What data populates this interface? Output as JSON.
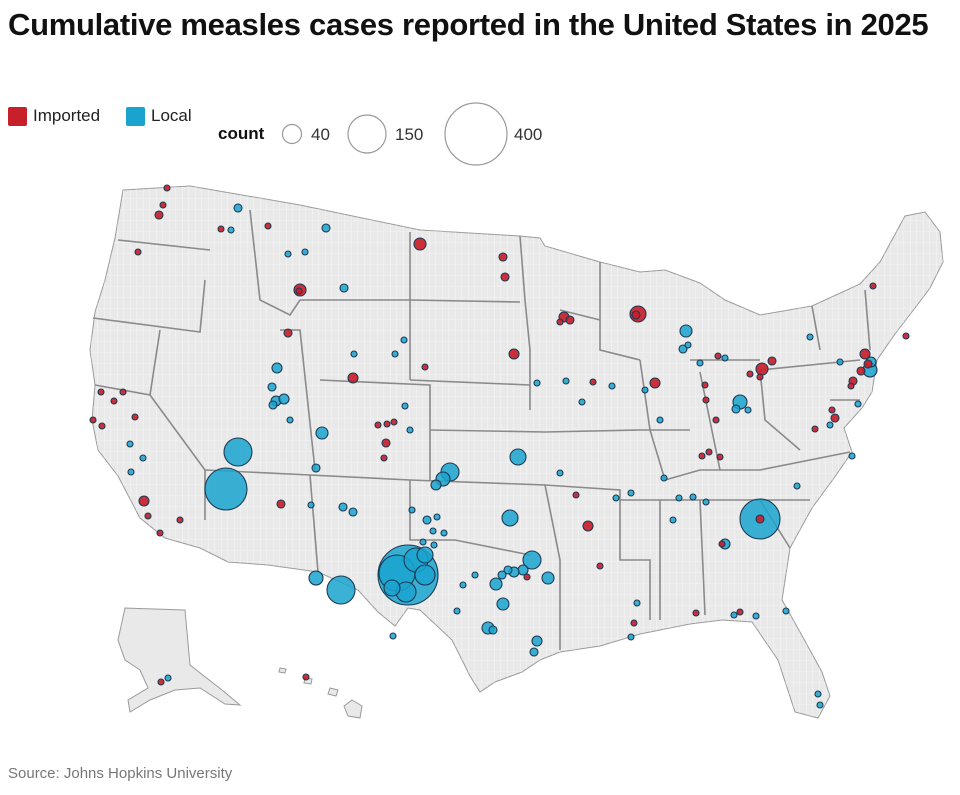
{
  "title": "Cumulative measles cases reported in the United States in 2025",
  "legend": {
    "categories": [
      {
        "label": "Imported",
        "color": "#c8202a"
      },
      {
        "label": "Local",
        "color": "#1aa3cf"
      }
    ],
    "size_label": "count",
    "size_values": [
      40,
      150,
      400
    ]
  },
  "source": "Source: Johns Hopkins University",
  "map": {
    "type": "proportional-symbol",
    "region": "United States (counties)",
    "marker_scale_reference": [
      40,
      150,
      400
    ],
    "outbreak_markers": [
      {
        "location": "Gaines County, TX",
        "type": "Local",
        "approx_count": 400
      },
      {
        "location": "Lea County, NM",
        "type": "Local",
        "approx_count": 70
      },
      {
        "location": "Mohave County, AZ",
        "type": "Local",
        "approx_count": 110
      },
      {
        "location": "Utah County, UT",
        "type": "Local",
        "approx_count": 60
      },
      {
        "location": "Atlanta area, GA",
        "type": "Local",
        "approx_count": 100
      },
      {
        "location": "Seward County, KS",
        "type": "Local",
        "approx_count": 25
      },
      {
        "location": "El Paso County, TX",
        "type": "Local",
        "approx_count": 20
      },
      {
        "location": "Dallas area, TX",
        "type": "Local",
        "approx_count": 20
      },
      {
        "location": "Rosebud County, MT",
        "type": "Local",
        "approx_count": 15
      },
      {
        "location": "Oklahoma",
        "type": "Local",
        "approx_count": 15
      }
    ]
  }
}
